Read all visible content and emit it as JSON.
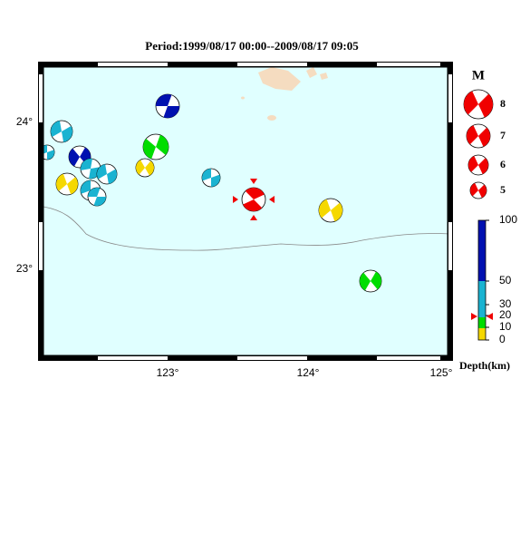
{
  "title": "Period:1999/08/17 00:00--2009/08/17 09:05",
  "lat_labels": [
    "24°",
    "23°"
  ],
  "lon_labels": [
    "123°",
    "124°",
    "125°"
  ],
  "magnitude_legend": {
    "title": "M",
    "labels": [
      "8",
      "7",
      "6",
      "5"
    ]
  },
  "depth_legend": {
    "labels": [
      "100",
      "50",
      "30",
      "20",
      "10",
      "0"
    ],
    "title": "Depth(km)"
  }
}
